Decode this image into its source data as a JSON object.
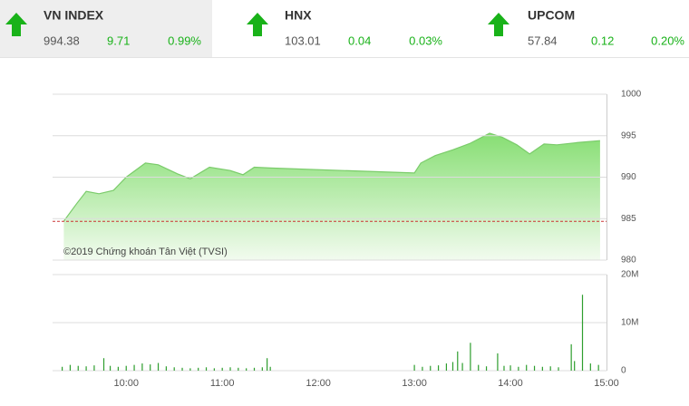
{
  "indices": [
    {
      "name": "VN INDEX",
      "value": "994.38",
      "change": "9.71",
      "change_pct": "0.99%"
    },
    {
      "name": "HNX",
      "value": "103.01",
      "change": "0.04",
      "change_pct": "0.03%"
    },
    {
      "name": "UPCOM",
      "value": "57.84",
      "change": "0.12",
      "change_pct": "0.20%"
    }
  ],
  "chart_data": [
    {
      "type": "area",
      "annotation": "©2019 Chứng khoán Tân Việt (TVSI)",
      "color": "#7acb6a",
      "x": [
        "09:21",
        "09:29",
        "09:35",
        "09:43",
        "09:52",
        "10:00",
        "10:12",
        "10:20",
        "10:32",
        "10:40",
        "10:52",
        "11:05",
        "11:13",
        "11:20",
        "11:30",
        "13:00",
        "13:04",
        "13:13",
        "13:24",
        "13:35",
        "13:47",
        "13:55",
        "14:04",
        "14:12",
        "14:21",
        "14:29",
        "14:43",
        "14:56"
      ],
      "values": [
        984.7,
        986.8,
        988.3,
        988,
        988.4,
        990,
        991.7,
        991.5,
        990.4,
        989.8,
        991.2,
        990.8,
        990.3,
        991.2,
        991.1,
        990.5,
        991.7,
        992.6,
        993.3,
        994.1,
        995.3,
        994.8,
        993.9,
        992.8,
        994,
        993.9,
        994.2,
        994.4
      ],
      "reference_line": 984.67,
      "xlim": [
        "09:14",
        "15:00"
      ],
      "ylim": [
        980,
        1000
      ],
      "yticks": [
        980,
        985,
        990,
        995,
        1000
      ],
      "grid": true
    },
    {
      "type": "bar",
      "color": "#2e9e2e",
      "x": [
        "09:20",
        "09:25",
        "09:30",
        "09:35",
        "09:40",
        "09:46",
        "09:50",
        "09:55",
        "10:00",
        "10:05",
        "10:10",
        "10:15",
        "10:20",
        "10:25",
        "10:30",
        "10:35",
        "10:40",
        "10:45",
        "10:50",
        "10:55",
        "11:00",
        "11:05",
        "11:10",
        "11:15",
        "11:20",
        "11:25",
        "11:28",
        "11:30",
        "13:00",
        "13:05",
        "13:10",
        "13:15",
        "13:20",
        "13:24",
        "13:27",
        "13:30",
        "13:35",
        "13:40",
        "13:45",
        "13:52",
        "13:56",
        "14:00",
        "14:05",
        "14:10",
        "14:15",
        "14:20",
        "14:25",
        "14:30",
        "14:38",
        "14:40",
        "14:45",
        "14:50",
        "14:55"
      ],
      "values": [
        800000,
        1200000,
        1000000,
        900000,
        1100000,
        2600000,
        1000000,
        800000,
        1000000,
        1200000,
        1500000,
        1300000,
        1600000,
        900000,
        700000,
        600000,
        500000,
        600000,
        700000,
        500000,
        600000,
        700000,
        600000,
        500000,
        600000,
        700000,
        2600000,
        800000,
        1200000,
        800000,
        1000000,
        1100000,
        1500000,
        1800000,
        4000000,
        1600000,
        5800000,
        1200000,
        900000,
        3600000,
        1000000,
        1100000,
        800000,
        1200000,
        1000000,
        800000,
        900000,
        700000,
        5500000,
        2000000,
        15800000,
        1500000,
        1200000
      ],
      "xlim": [
        "09:14",
        "15:00"
      ],
      "xticks": [
        "10:00",
        "11:00",
        "12:00",
        "13:00",
        "14:00",
        "15:00"
      ],
      "ylim": [
        0,
        20000000
      ],
      "yticks": [
        0,
        {
          "value": 10000000,
          "label": "10M"
        },
        {
          "value": 20000000,
          "label": "20M"
        }
      ],
      "grid": true
    }
  ]
}
